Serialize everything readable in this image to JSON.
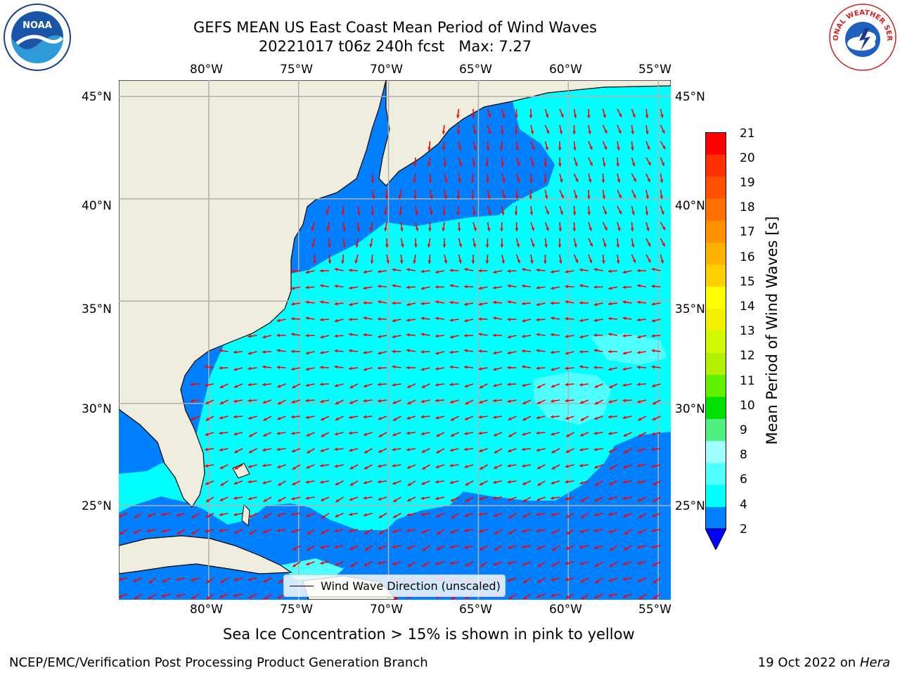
{
  "title": {
    "line1": "GEFS MEAN US East Coast Mean Period of Wind Waves",
    "line2": "20221017 t06z 240h fcst   Max: 7.27"
  },
  "logos": {
    "left": {
      "icon": "noaa-logo-icon",
      "text": "NOAA"
    },
    "right": {
      "icon": "nws-logo-icon",
      "text": "NATIONAL WEATHER SERVICE"
    }
  },
  "map": {
    "extent": {
      "lon": [
        -85,
        -54.3
      ],
      "lat": [
        20.4,
        45.8
      ]
    },
    "lon_ticks": [
      "80°W",
      "75°W",
      "70°W",
      "65°W",
      "60°W",
      "55°W"
    ],
    "lat_ticks": [
      "45°N",
      "40°N",
      "35°N",
      "30°N",
      "25°N"
    ],
    "land_color": "#efedde",
    "colors": {
      "band_2_4": "#0080ff",
      "band_4_6": "#00ffff",
      "band_6_8": "#50ffff",
      "arrow": "#ff0000",
      "grid": "#b0b0b0"
    }
  },
  "colorbar": {
    "label": "Mean Period of Wind Waves [s]",
    "ticks": [
      "21",
      "20",
      "19",
      "18",
      "17",
      "16",
      "15",
      "14",
      "13",
      "12",
      "11",
      "10",
      "9",
      "8",
      "6",
      "4",
      "2"
    ],
    "colors": [
      "#0000ff",
      "#0080ff",
      "#00ffff",
      "#50ffff",
      "#a0ffff",
      "#50f080",
      "#00e000",
      "#60f000",
      "#b0f000",
      "#d0f800",
      "#f0f000",
      "#ffff00",
      "#ffd000",
      "#ffb000",
      "#ff9000",
      "#ff7000",
      "#ff5000",
      "#ff3000",
      "#ff0000"
    ]
  },
  "legend": {
    "label": "Wind Wave Direction (unscaled)"
  },
  "subtitle": "Sea Ice Concentration > 15% is shown in pink to yellow",
  "footer": {
    "left": "NCEP/EMC/Verification Post Processing Product Generation Branch",
    "right_date": "19 Oct 2022 on ",
    "right_machine": "Hera"
  }
}
